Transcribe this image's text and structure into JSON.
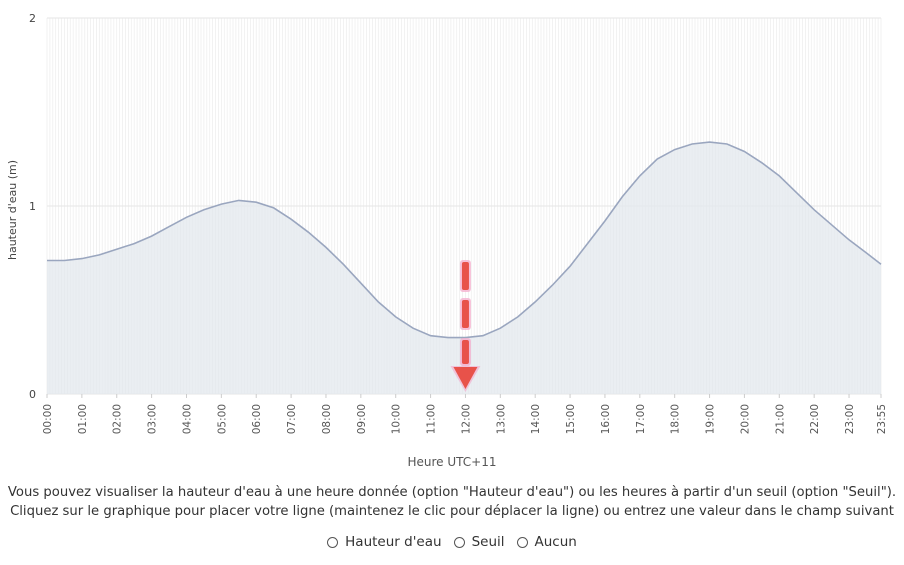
{
  "chart_data": {
    "type": "area",
    "xlabel": "Heure UTC+11",
    "ylabel": "hauteur d'eau (m)",
    "ylim": [
      0,
      2
    ],
    "y_ticks": [
      "0",
      "1",
      "2"
    ],
    "x_ticks": [
      "00:00",
      "01:00",
      "02:00",
      "03:00",
      "04:00",
      "05:00",
      "06:00",
      "07:00",
      "08:00",
      "09:00",
      "10:00",
      "11:00",
      "12:00",
      "13:00",
      "14:00",
      "15:00",
      "16:00",
      "17:00",
      "18:00",
      "19:00",
      "20:00",
      "21:00",
      "22:00",
      "23:00",
      "23:55"
    ],
    "x": [
      "00:00",
      "00:30",
      "01:00",
      "01:30",
      "02:00",
      "02:30",
      "03:00",
      "03:30",
      "04:00",
      "04:30",
      "05:00",
      "05:30",
      "06:00",
      "06:30",
      "07:00",
      "07:30",
      "08:00",
      "08:30",
      "09:00",
      "09:30",
      "10:00",
      "10:30",
      "11:00",
      "11:30",
      "12:00",
      "12:30",
      "13:00",
      "13:30",
      "14:00",
      "14:30",
      "15:00",
      "15:30",
      "16:00",
      "16:30",
      "17:00",
      "17:30",
      "18:00",
      "18:30",
      "19:00",
      "19:30",
      "20:00",
      "20:30",
      "21:00",
      "21:30",
      "22:00",
      "22:30",
      "23:00",
      "23:30",
      "23:55"
    ],
    "series": [
      {
        "values": [
          0.71,
          0.71,
          0.72,
          0.74,
          0.77,
          0.8,
          0.84,
          0.89,
          0.94,
          0.98,
          1.01,
          1.03,
          1.02,
          0.99,
          0.93,
          0.86,
          0.78,
          0.69,
          0.59,
          0.49,
          0.41,
          0.35,
          0.31,
          0.3,
          0.3,
          0.31,
          0.35,
          0.41,
          0.49,
          0.58,
          0.68,
          0.8,
          0.92,
          1.05,
          1.16,
          1.25,
          1.3,
          1.33,
          1.34,
          1.33,
          1.29,
          1.23,
          1.16,
          1.07,
          0.98,
          0.9,
          0.82,
          0.75,
          0.69
        ]
      }
    ],
    "marker": {
      "x": "12:00",
      "direction": "down",
      "style": "dashed-arrow"
    },
    "colors": {
      "line": "#9aa6bf",
      "fill": "#e3e8ed",
      "grid": "#e6e6e6",
      "marker": "#e8524a",
      "marker_glow": "#f3a6c9"
    },
    "grid": true,
    "legend": "none"
  },
  "info": {
    "line1": "Vous pouvez visualiser la hauteur d'eau à une heure donnée (option \"Hauteur d'eau\") ou les heures à partir d'un seuil (option \"Seuil\").",
    "line2": "Cliquez sur le graphique pour placer votre ligne (maintenez le clic pour déplacer la ligne) ou entrez une valeur dans le champ suivant"
  },
  "options": [
    {
      "label": "Hauteur d'eau",
      "icon": "radio-unchecked"
    },
    {
      "label": "Seuil",
      "icon": "radio-unchecked"
    },
    {
      "label": "Aucun",
      "icon": "radio-unchecked"
    }
  ]
}
